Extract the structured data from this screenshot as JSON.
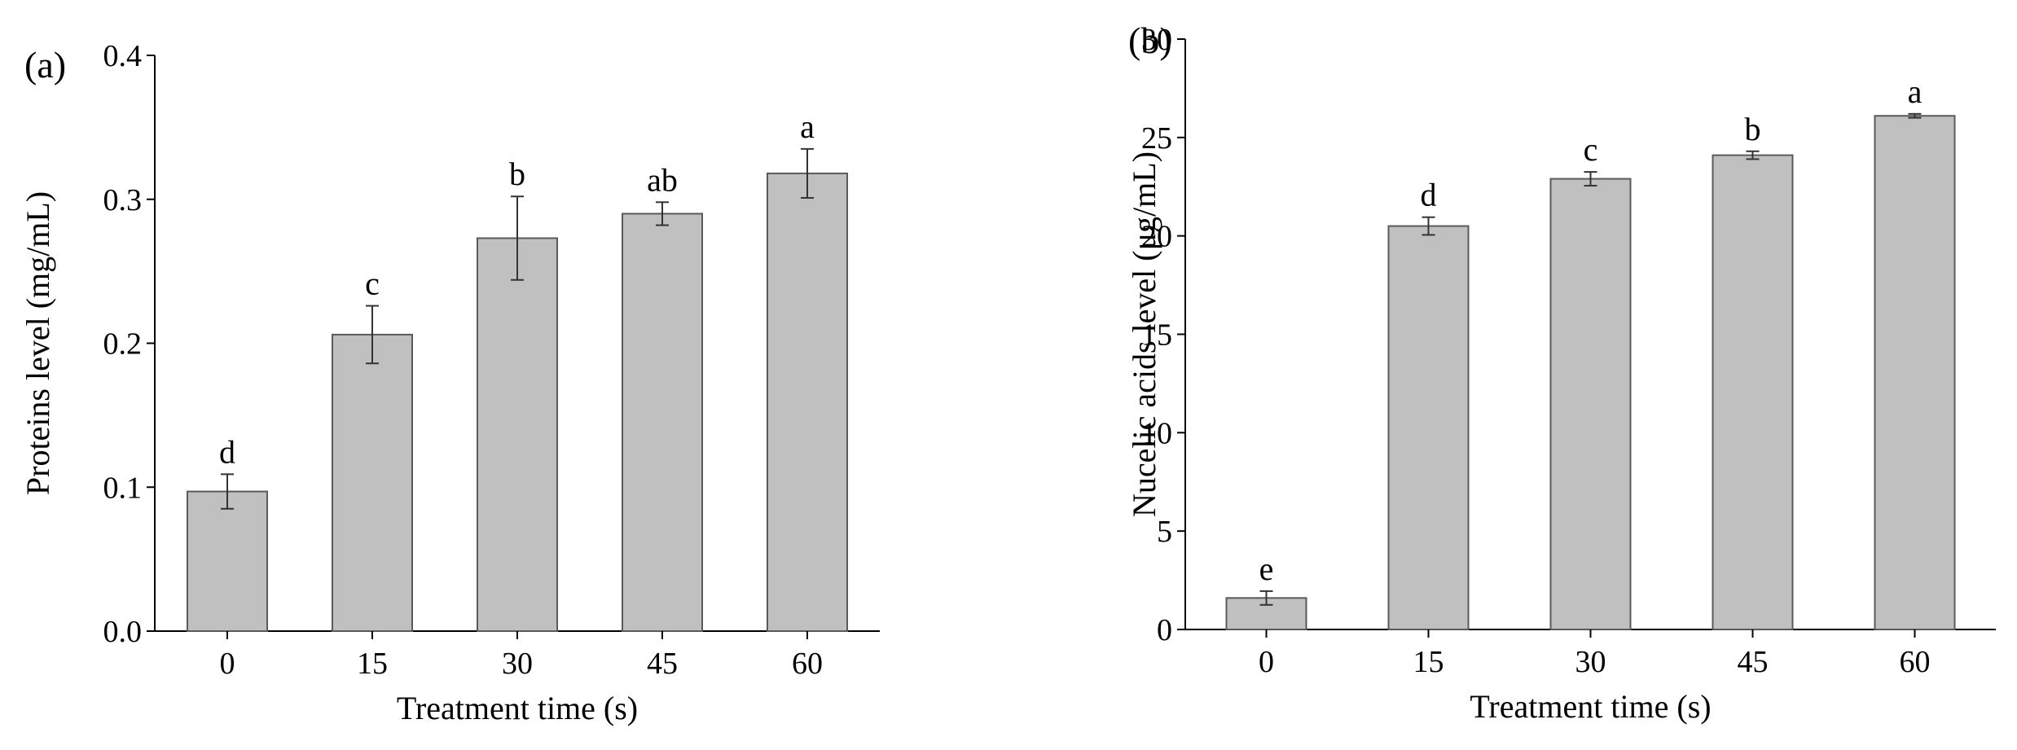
{
  "bar_color": "#c0c0c0",
  "chart_data": [
    {
      "type": "bar",
      "panel_label": "(a)",
      "xlabel": "Treatment time (s)",
      "ylabel": "Proteins level (mg/mL)",
      "categories": [
        "0",
        "15",
        "30",
        "45",
        "60"
      ],
      "values": [
        0.097,
        0.206,
        0.273,
        0.29,
        0.318
      ],
      "errors": [
        0.012,
        0.02,
        0.029,
        0.008,
        0.017
      ],
      "significance": [
        "d",
        "c",
        "b",
        "ab",
        "a"
      ],
      "ylim": [
        0,
        0.4
      ],
      "yticks": [
        "0.0",
        "0.1",
        "0.2",
        "0.3",
        "0.4"
      ],
      "grid": false,
      "legend": "none"
    },
    {
      "type": "bar",
      "panel_label": "(b)",
      "xlabel": "Treatment time (s)",
      "ylabel": "Nucelic acids level (μg/mL)",
      "categories": [
        "0",
        "15",
        "30",
        "45",
        "60"
      ],
      "values": [
        1.6,
        20.5,
        22.9,
        24.1,
        26.1
      ],
      "errors": [
        0.35,
        0.45,
        0.35,
        0.2,
        0.1
      ],
      "significance": [
        "e",
        "d",
        "c",
        "b",
        "a"
      ],
      "ylim": [
        0,
        30
      ],
      "yticks": [
        "0",
        "5",
        "10",
        "15",
        "20",
        "25",
        "30"
      ],
      "grid": false,
      "legend": "none"
    }
  ]
}
